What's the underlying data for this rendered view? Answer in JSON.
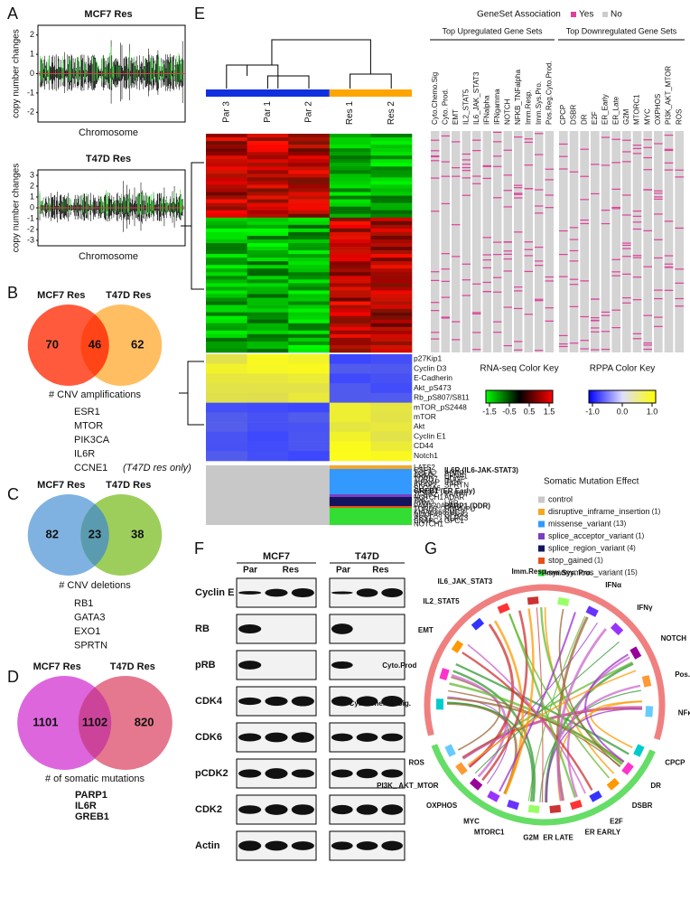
{
  "panels": {
    "A": {
      "letter": "A",
      "plots": [
        {
          "title": "MCF7 Res",
          "ylabel": "copy number changes",
          "xlabel": "Chromosome",
          "yticks": [
            "2",
            "1",
            "0",
            "-1",
            "-2"
          ]
        },
        {
          "title": "T47D Res",
          "ylabel": "copy number changes",
          "xlabel": "Chromosome",
          "yticks": [
            "3",
            "2",
            "1",
            "0",
            "-1",
            "-2",
            "-3"
          ]
        }
      ]
    },
    "B": {
      "letter": "B",
      "left": "MCF7 Res",
      "right": "T47D Res",
      "counts": [
        "70",
        "46",
        "62"
      ],
      "caption": "# CNV amplifications",
      "genes": [
        {
          "text": "ESR1"
        },
        {
          "text": "MTOR"
        },
        {
          "text": "PIK3CA"
        },
        {
          "text": "IL6R"
        },
        {
          "text": "CCNE1",
          "note": "(T47D res only)"
        }
      ]
    },
    "C": {
      "letter": "C",
      "left": "MCF7 Res",
      "right": "T47D Res",
      "counts": [
        "82",
        "23",
        "38"
      ],
      "caption": "# CNV deletions",
      "genes": [
        {
          "text": "RB1"
        },
        {
          "text": "GATA3"
        },
        {
          "text": "EXO1"
        },
        {
          "text": "SPRTN"
        }
      ]
    },
    "D": {
      "letter": "D",
      "left": "MCF7 Res",
      "right": "T47D Res",
      "counts": [
        "1101",
        "1102",
        "820"
      ],
      "caption": "# of somatic mutations",
      "genes_color": "#e0309a",
      "genes": [
        {
          "text": "PARP1"
        },
        {
          "text": "IL6R"
        },
        {
          "text": "GREB1"
        }
      ]
    },
    "E": {
      "letter": "E",
      "samples": [
        "Par 3",
        "Par 1",
        "Par 2",
        "Res 1",
        "Res 2"
      ],
      "geneset_legend": {
        "title": "GeneSet Association",
        "yes": "Yes",
        "no": "No"
      },
      "up_title": "Top Upregulated Gene Sets",
      "down_title": "Top Downregulated Gene Sets",
      "up_sets": [
        "Cyto.Chemo.Sig",
        "Cyto. Prod.",
        "EMT",
        "IL2_STAT5",
        "IL6_JAK_STAT3",
        "IFNalpha",
        "IFNgamma",
        "NOTCH",
        "NFKB_TNFalpha",
        "Imm.Resp.",
        "Imm.Sys.Pro.",
        "Pos.Reg.Cyto.Prod."
      ],
      "down_sets": [
        "CPCP",
        "DSBR",
        "DR",
        "E2F",
        "ER_Early",
        "ER_Late",
        "G2M",
        "MTORC1",
        "MYC",
        "OXPHOS",
        "PI3K_AKT_MTOR",
        "ROS"
      ],
      "rppa": [
        "p27Kip1",
        "Cyclin D3",
        "E-Cadherin",
        "Akt_pS473",
        "Rb_pS807/S811",
        "mTOR_pS2448",
        "mTOR",
        "Akt",
        "Cyclin E1",
        "CD44",
        "Notch1"
      ],
      "rna_key": {
        "title": "RNA-seq Color Key",
        "ticks": [
          "-1.5",
          "-0.5",
          "0.5",
          "1.5"
        ]
      },
      "rppa_key": {
        "title": "RPPA Color Key",
        "ticks": [
          "-1.0",
          "0.0",
          "1.0"
        ]
      },
      "mut_left": [
        {
          "text": "LATS2"
        },
        {
          "text": "CSF1"
        },
        {
          "text": "TCEB2"
        },
        {
          "text": "RRM2"
        },
        {
          "text": "TDRD7"
        },
        {
          "text": "IKBKAP"
        },
        {
          "text": "AKAP2"
        },
        {
          "text": "SLC2A6"
        },
        {
          "text": "GREB1 (ER Early)",
          "highlight": true
        },
        {
          "text": "TCEB2"
        },
        {
          "text": "NOTCH1"
        },
        {
          "text": "TNC"
        },
        {
          "text": "RRM2"
        },
        {
          "text": "FAM120A"
        },
        {
          "text": "TDRD7"
        },
        {
          "text": "KIAA0368"
        },
        {
          "text": "NDUFA8"
        },
        {
          "text": "ASS1"
        },
        {
          "text": "SNAPC4"
        },
        {
          "text": "NOTCH1"
        }
      ],
      "mut_right": [
        {
          "text": "IL6R (IL6-JAK-STAT3)",
          "highlight": true
        },
        {
          "text": "ADAR"
        },
        {
          "text": "EFNA1"
        },
        {
          "text": "HDGF"
        },
        {
          "text": "IFI16"
        },
        {
          "text": "SPRTN"
        },
        {
          "text": "PARP4"
        },
        {
          "text": "ADAR"
        },
        {
          "text": "LBR"
        },
        {
          "text": "PARP1 (DDR)",
          "highlight": true
        },
        {
          "text": "HNRNPU"
        },
        {
          "text": "SMC3"
        },
        {
          "text": "GPR83"
        },
        {
          "text": "NLRC3"
        },
        {
          "text": "GPC1"
        }
      ],
      "highlight_color": "#d4309a",
      "mutation_legend": {
        "title": "Somatic Mutation Effect",
        "items": [
          {
            "label": "control",
            "color": "#c8c8c8"
          },
          {
            "label": "disruptive_inframe_insertion",
            "count": "(1)",
            "color": "#f5a623"
          },
          {
            "label": "missense_variant",
            "count": "(13)",
            "color": "#3399ff"
          },
          {
            "label": "splice_acceptor_variant",
            "count": "(1)",
            "color": "#7a3fbf"
          },
          {
            "label": "splice_region_variant",
            "count": "(4)",
            "color": "#14145e"
          },
          {
            "label": "stop_gained",
            "count": "(1)",
            "color": "#e8501a"
          },
          {
            "label": "synonymous_variant",
            "count": "(15)",
            "color": "#33dd33"
          }
        ]
      }
    },
    "F": {
      "letter": "F",
      "lines": [
        "MCF7",
        "T47D"
      ],
      "par": "Par",
      "res": "Res",
      "proteins": [
        "Cyclin E",
        "RB",
        "pRB",
        "CDK4",
        "CDK6",
        "pCDK2",
        "CDK2",
        "Actin"
      ]
    },
    "G": {
      "letter": "G",
      "top": [
        "Cyto. Chemo. Sig.",
        "Cyto.Prod",
        "EMT",
        "IL2_STAT5",
        "IL6_JAK_STAT3",
        "Imm.Resp.",
        "Imm.Sys. Pro.",
        "IFNα",
        "IFNγ",
        "NOTCH",
        "Pos.Reg. Cyto.Prod.",
        "NFκB_ TNFα"
      ],
      "bottom": [
        "CPCP",
        "DR",
        "DSBR",
        "E2F",
        "ER EARLY",
        "ER LATE",
        "G2M",
        "MTORC1",
        "MYC",
        "OXPHOS",
        "PI3K_ AKT_MTOR",
        "ROS"
      ]
    }
  }
}
